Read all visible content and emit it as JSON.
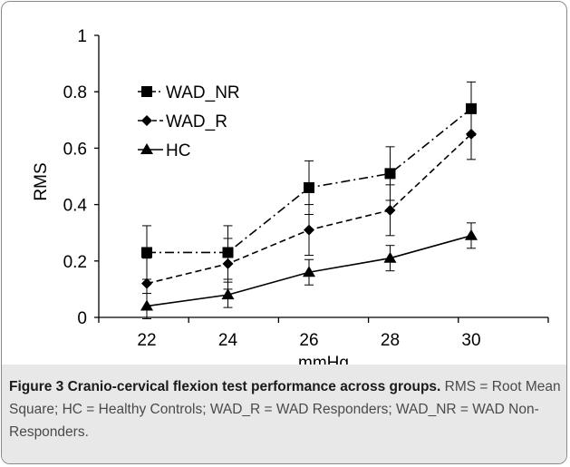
{
  "chart_data": {
    "type": "line",
    "x": [
      22,
      24,
      26,
      28,
      30
    ],
    "xlabel": "mmHg",
    "ylabel": "RMS",
    "xticks": [
      "22",
      "24",
      "26",
      "28",
      "30"
    ],
    "yticks": [
      "0",
      "0.2",
      "0.4",
      "0.6",
      "0.8",
      "1"
    ],
    "ylim": [
      0,
      1
    ],
    "grid": false,
    "legend_position": "top-left",
    "series": [
      {
        "name": "WAD_NR",
        "marker": "square",
        "line_style": "dash-dot",
        "values": [
          0.23,
          0.23,
          0.46,
          0.51,
          0.74
        ],
        "error": [
          0.095,
          0.095,
          0.095,
          0.095,
          0.095
        ]
      },
      {
        "name": "WAD_R",
        "marker": "diamond",
        "line_style": "dashed",
        "values": [
          0.12,
          0.19,
          0.31,
          0.38,
          0.65
        ],
        "error": [
          0.09,
          0.09,
          0.09,
          0.09,
          0.09
        ]
      },
      {
        "name": "HC",
        "marker": "triangle",
        "line_style": "solid",
        "values": [
          0.04,
          0.08,
          0.16,
          0.21,
          0.29
        ],
        "error": [
          0.045,
          0.045,
          0.045,
          0.045,
          0.045
        ]
      }
    ]
  },
  "caption": {
    "title": "Figure 3 Cranio-cervical flexion test performance across groups.",
    "text": "RMS = Root Mean Square; HC = Healthy Controls; WAD_R = WAD Responders; WAD_NR = WAD Non-Responders."
  }
}
